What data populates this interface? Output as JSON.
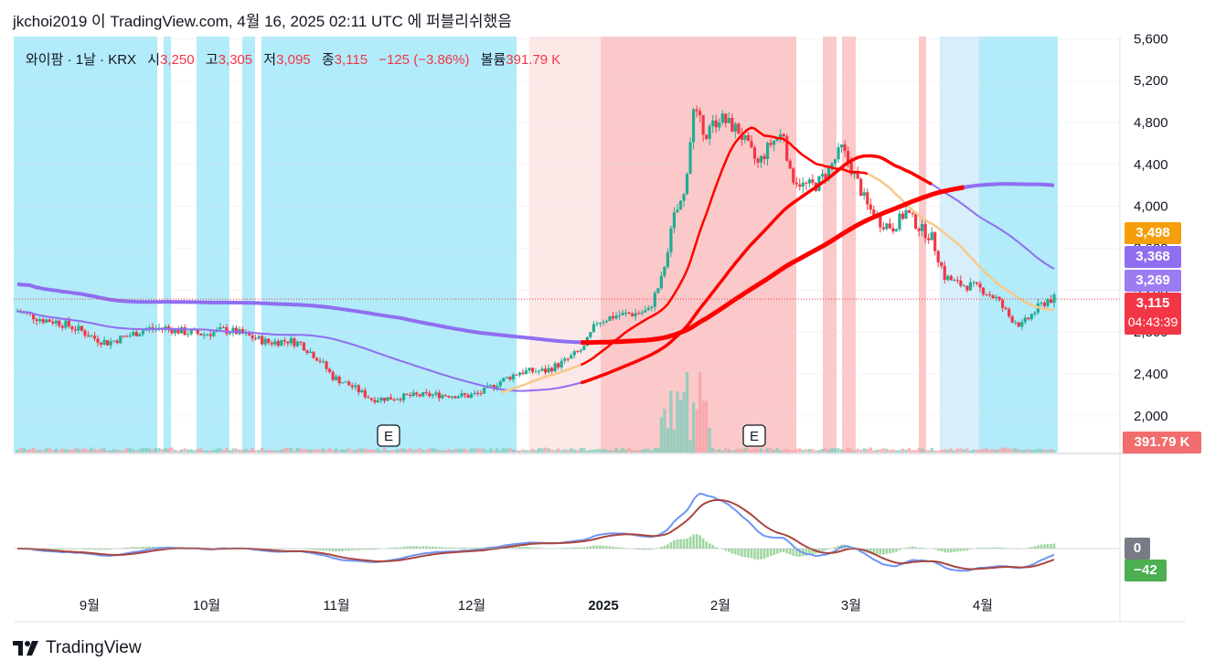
{
  "header": {
    "publication": "jkchoi2019 이 TradingView.com, 4월 16, 2025 02:11 UTC 에 퍼블리쉬했음"
  },
  "legend": {
    "symbol": "와이팜 · 1날 · KRX",
    "open_label": "시",
    "open": "3,250",
    "high_label": "고",
    "high": "3,305",
    "low_label": "저",
    "low": "3,095",
    "close_label": "종",
    "close": "3,115",
    "change": "−125 (−3.86%)",
    "volume_label": "볼륨",
    "volume": "391.79 K"
  },
  "price_tags": {
    "ma_orange": "3,498",
    "ma_purple_top": "3,368",
    "ma_purple_low": "3,269",
    "last_price": "3,115",
    "countdown": "04:43:39",
    "volume": "391.79 K",
    "macd_zero": "0",
    "macd_value": "−42"
  },
  "branding": {
    "logo_text": "TradingView",
    "logo_icon": "tradingview-logo-icon"
  },
  "colors": {
    "up": "#22ab94",
    "down": "#f23645",
    "bg_blue": "#b2ebf9",
    "bg_blue_light": "#d7eefb",
    "bg_red": "#fbc9c9",
    "bg_red_light": "#fde8e8",
    "ma_red": "#ff0000",
    "ma_purple": "#8f6ef0",
    "ma_orange": "#f8c98b",
    "macd_line": "#6e95f5",
    "signal_line": "#a8463f",
    "hist": "#9fd69f"
  },
  "chart_data": [
    {
      "type": "candlestick",
      "title": "와이팜 · 1날 · KRX",
      "y_axis": {
        "ticks": [
          2000,
          2400,
          2800,
          3200,
          3600,
          4000,
          4400,
          4800,
          5200,
          5600
        ],
        "range": [
          1650,
          5620
        ]
      },
      "x_axis": {
        "ticks": [
          "9월",
          "10월",
          "11월",
          "12월",
          "2025",
          "2월",
          "3월",
          "4월"
        ]
      },
      "earnings_markers": [
        "E",
        "E"
      ],
      "price_path": [
        [
          0,
          3000
        ],
        [
          8,
          2920
        ],
        [
          12,
          2900
        ],
        [
          16,
          2860
        ],
        [
          20,
          2810
        ],
        [
          24,
          2740
        ],
        [
          28,
          2700
        ],
        [
          34,
          2760
        ],
        [
          40,
          2830
        ],
        [
          46,
          2840
        ],
        [
          52,
          2800
        ],
        [
          58,
          2780
        ],
        [
          64,
          2820
        ],
        [
          68,
          2800
        ],
        [
          72,
          2760
        ],
        [
          78,
          2700
        ],
        [
          84,
          2720
        ],
        [
          88,
          2690
        ],
        [
          94,
          2530
        ],
        [
          98,
          2370
        ],
        [
          104,
          2280
        ],
        [
          110,
          2160
        ],
        [
          116,
          2170
        ],
        [
          122,
          2190
        ],
        [
          128,
          2200
        ],
        [
          134,
          2200
        ],
        [
          140,
          2190
        ],
        [
          144,
          2220
        ],
        [
          150,
          2330
        ],
        [
          156,
          2420
        ],
        [
          164,
          2430
        ],
        [
          170,
          2520
        ],
        [
          176,
          2650
        ],
        [
          180,
          2900
        ],
        [
          186,
          2960
        ],
        [
          192,
          2980
        ],
        [
          196,
          3000
        ],
        [
          200,
          3300
        ],
        [
          204,
          3900
        ],
        [
          207,
          4100
        ],
        [
          210,
          4900
        ],
        [
          214,
          4700
        ],
        [
          218,
          4850
        ],
        [
          224,
          4720
        ],
        [
          230,
          4400
        ],
        [
          234,
          4600
        ],
        [
          238,
          4700
        ],
        [
          240,
          4300
        ],
        [
          244,
          4200
        ],
        [
          248,
          4200
        ],
        [
          252,
          4350
        ],
        [
          256,
          4550
        ],
        [
          260,
          4300
        ],
        [
          264,
          4000
        ],
        [
          268,
          3850
        ],
        [
          272,
          3800
        ],
        [
          276,
          3950
        ],
        [
          280,
          3800
        ],
        [
          284,
          3700
        ],
        [
          288,
          3330
        ],
        [
          292,
          3260
        ],
        [
          296,
          3240
        ],
        [
          300,
          3200
        ],
        [
          304,
          3120
        ],
        [
          308,
          2950
        ],
        [
          312,
          2860
        ],
        [
          316,
          3000
        ],
        [
          320,
          3110
        ],
        [
          322,
          3115
        ]
      ],
      "series": [
        {
          "name": "MA purple (long)",
          "end_value": 3269
        },
        {
          "name": "MA purple (short)",
          "end_value": 3368
        },
        {
          "name": "MA orange",
          "end_value": 3498
        },
        {
          "name": "MA red"
        }
      ],
      "volume_last": "391.79 K"
    },
    {
      "type": "line",
      "title": "",
      "y_axis": {
        "ticks": [
          0,
          1000
        ]
      },
      "series": [
        {
          "name": "MACD",
          "end_value": -42
        },
        {
          "name": "Signal"
        },
        {
          "name": "Histogram"
        }
      ]
    }
  ]
}
